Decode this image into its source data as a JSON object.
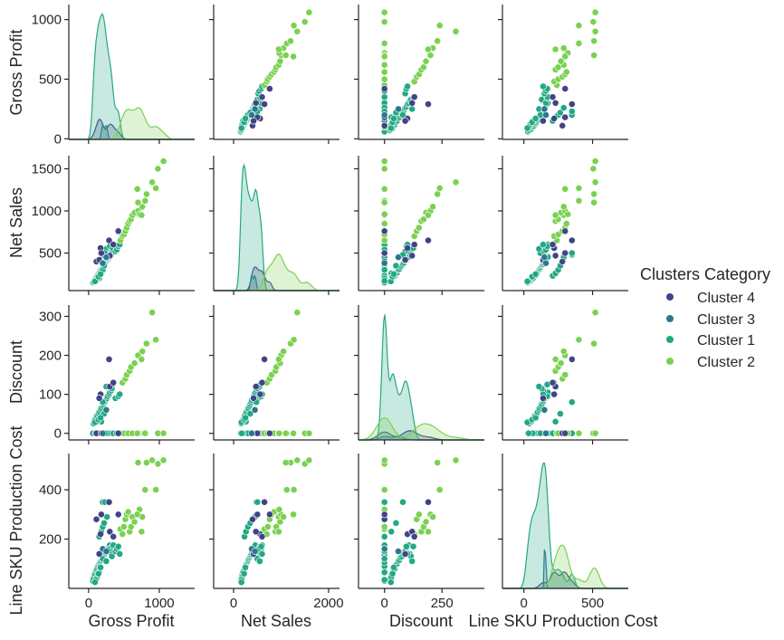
{
  "chart_data": {
    "type": "scatter",
    "subtype": "pairplot",
    "variables": [
      "Gross Profit",
      "Net Sales",
      "Discount",
      "Line SKU Production Cost"
    ],
    "x_ranges": [
      [
        -280,
        1500
      ],
      [
        -420,
        2230
      ],
      [
        -113,
        434
      ],
      [
        -156,
        760
      ]
    ],
    "y_ranges": [
      [
        -5,
        1126
      ],
      [
        55,
        1655
      ],
      [
        -17,
        329
      ],
      [
        0,
        547
      ]
    ],
    "x_ticks": [
      [
        0,
        1000
      ],
      [
        0,
        2000
      ],
      [
        0,
        250
      ],
      [
        0,
        500
      ]
    ],
    "y_ticks": [
      [
        0,
        500,
        1000
      ],
      [
        500,
        1000,
        1500
      ],
      [
        0,
        100,
        200,
        300
      ],
      [
        200,
        400
      ]
    ],
    "grid": false,
    "diagonal": "kde",
    "legend": {
      "title": "Clusters Category",
      "placement": "right",
      "entries": [
        {
          "label": "Cluster 4",
          "cluster": 4,
          "color": "#414487"
        },
        {
          "label": "Cluster 3",
          "cluster": 3,
          "color": "#2a788e"
        },
        {
          "label": "Cluster 1",
          "cluster": 1,
          "color": "#22a884"
        },
        {
          "label": "Cluster 2",
          "cluster": 2,
          "color": "#7ad151"
        }
      ]
    },
    "point_fields": [
      "Gross Profit",
      "Net Sales",
      "Discount",
      "Line SKU Production Cost",
      "cluster"
    ],
    "points": [
      [
        60,
        150,
        0,
        30,
        1
      ],
      [
        70,
        160,
        25,
        40,
        1
      ],
      [
        80,
        175,
        30,
        55,
        1
      ],
      [
        90,
        190,
        35,
        60,
        1
      ],
      [
        100,
        200,
        0,
        70,
        1
      ],
      [
        110,
        215,
        40,
        75,
        1
      ],
      [
        120,
        230,
        45,
        80,
        1
      ],
      [
        130,
        240,
        0,
        90,
        1
      ],
      [
        140,
        255,
        50,
        95,
        1
      ],
      [
        150,
        270,
        55,
        100,
        1
      ],
      [
        160,
        285,
        0,
        105,
        1
      ],
      [
        170,
        300,
        60,
        110,
        1
      ],
      [
        180,
        310,
        65,
        115,
        1
      ],
      [
        190,
        320,
        0,
        120,
        1
      ],
      [
        200,
        335,
        70,
        125,
        1
      ],
      [
        210,
        350,
        75,
        130,
        1
      ],
      [
        220,
        360,
        0,
        135,
        1
      ],
      [
        230,
        370,
        80,
        140,
        1
      ],
      [
        240,
        385,
        85,
        145,
        1
      ],
      [
        250,
        400,
        0,
        150,
        1
      ],
      [
        260,
        410,
        90,
        155,
        1
      ],
      [
        270,
        420,
        95,
        160,
        1
      ],
      [
        280,
        430,
        0,
        165,
        1
      ],
      [
        290,
        440,
        100,
        170,
        1
      ],
      [
        300,
        455,
        105,
        175,
        1
      ],
      [
        310,
        465,
        0,
        150,
        1
      ],
      [
        320,
        480,
        110,
        140,
        1
      ],
      [
        330,
        500,
        115,
        130,
        1
      ],
      [
        200,
        500,
        0,
        120,
        1
      ],
      [
        250,
        550,
        120,
        110,
        1
      ],
      [
        300,
        580,
        0,
        160,
        1
      ],
      [
        340,
        560,
        125,
        170,
        1
      ],
      [
        350,
        600,
        0,
        175,
        1
      ],
      [
        380,
        520,
        90,
        150,
        1
      ],
      [
        400,
        540,
        0,
        160,
        1
      ],
      [
        420,
        580,
        95,
        170,
        1
      ],
      [
        440,
        600,
        100,
        140,
        1
      ],
      [
        150,
        230,
        0,
        210,
        1
      ],
      [
        180,
        260,
        30,
        230,
        1
      ],
      [
        200,
        300,
        0,
        250,
        1
      ],
      [
        220,
        350,
        50,
        265,
        1
      ],
      [
        260,
        450,
        0,
        290,
        1
      ],
      [
        200,
        480,
        80,
        350,
        1
      ],
      [
        230,
        500,
        0,
        350,
        1
      ],
      [
        150,
        200,
        0,
        65,
        1
      ],
      [
        120,
        180,
        30,
        45,
        1
      ],
      [
        100,
        170,
        0,
        35,
        1
      ],
      [
        90,
        165,
        28,
        25,
        1
      ],
      [
        140,
        220,
        35,
        60,
        1
      ],
      [
        170,
        250,
        40,
        85,
        1
      ],
      [
        450,
        650,
        0,
        240,
        2
      ],
      [
        480,
        700,
        130,
        220,
        2
      ],
      [
        500,
        720,
        0,
        250,
        2
      ],
      [
        520,
        760,
        140,
        280,
        2
      ],
      [
        540,
        800,
        150,
        300,
        2
      ],
      [
        560,
        850,
        0,
        310,
        2
      ],
      [
        580,
        880,
        160,
        230,
        2
      ],
      [
        600,
        900,
        170,
        250,
        2
      ],
      [
        620,
        950,
        0,
        290,
        2
      ],
      [
        650,
        980,
        180,
        270,
        2
      ],
      [
        700,
        1000,
        200,
        300,
        2
      ],
      [
        720,
        960,
        0,
        320,
        2
      ],
      [
        760,
        1050,
        210,
        290,
        2
      ],
      [
        800,
        1120,
        0,
        400,
        2
      ],
      [
        820,
        1200,
        230,
        510,
        2
      ],
      [
        700,
        1100,
        0,
        510,
        2
      ],
      [
        980,
        1500,
        0,
        505,
        2
      ],
      [
        1060,
        1590,
        0,
        520,
        2
      ],
      [
        900,
        1340,
        310,
        520,
        2
      ],
      [
        950,
        1270,
        240,
        400,
        2
      ],
      [
        690,
        1260,
        0,
        300,
        2
      ],
      [
        750,
        950,
        190,
        230,
        2
      ],
      [
        110,
        400,
        0,
        280,
        4
      ],
      [
        170,
        560,
        100,
        220,
        4
      ],
      [
        180,
        500,
        0,
        300,
        4
      ],
      [
        290,
        650,
        190,
        350,
        4
      ],
      [
        300,
        470,
        120,
        230,
        4
      ],
      [
        420,
        760,
        0,
        300,
        4
      ],
      [
        350,
        600,
        130,
        210,
        4
      ],
      [
        150,
        420,
        90,
        140,
        4
      ],
      [
        200,
        380,
        0,
        160,
        3
      ],
      [
        250,
        450,
        60,
        150,
        3
      ]
    ]
  }
}
